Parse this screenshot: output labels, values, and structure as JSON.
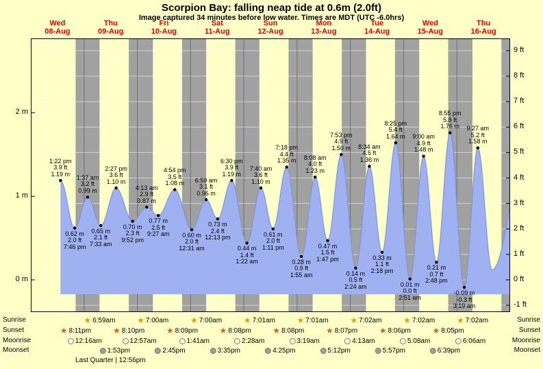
{
  "header": {
    "title": "Scorpion Bay: falling  neap tide at 0.6m (2.0ft)",
    "subtitle": "Image captured 34 minutes before low water. Times are MDT (UTC -6.0hrs)"
  },
  "chart_data": {
    "type": "area",
    "title": "Scorpion Bay: falling neap tide at 0.6m (2.0ft)",
    "x_axis_unit": "days",
    "days": [
      {
        "name": "Wed",
        "date": "08-Aug"
      },
      {
        "name": "Thu",
        "date": "09-Aug"
      },
      {
        "name": "Fri",
        "date": "10-Aug"
      },
      {
        "name": "Sat",
        "date": "11-Aug"
      },
      {
        "name": "Sun",
        "date": "12-Aug"
      },
      {
        "name": "Mon",
        "date": "13-Aug"
      },
      {
        "name": "Tue",
        "date": "14-Aug"
      },
      {
        "name": "Wed",
        "date": "15-Aug"
      },
      {
        "name": "Thu",
        "date": "16-Aug"
      }
    ],
    "y_axis_meters": {
      "labels": [
        "2 m",
        "1 m",
        "0 m"
      ],
      "values": [
        2,
        1,
        0
      ]
    },
    "y_axis_feet": {
      "labels": [
        "9 ft",
        "8 ft",
        "7 ft",
        "6 ft",
        "5 ft",
        "4 ft",
        "3 ft",
        "2 ft",
        "1 ft",
        "0 ft",
        "-1 ft"
      ],
      "values": [
        9,
        8,
        7,
        6,
        5,
        4,
        3,
        2,
        1,
        0,
        -1
      ]
    },
    "tide_events": [
      {
        "day": 0,
        "hour": 13.37,
        "type": "high",
        "time": "1:22 pm",
        "ft": "3.9 ft",
        "m": "1.19 m",
        "height_m": 1.19
      },
      {
        "day": 0,
        "hour": 19.77,
        "type": "low",
        "time": "7:46 pm",
        "ft": "2.0 ft",
        "m": "0.62 m",
        "height_m": 0.62
      },
      {
        "day": 1,
        "hour": 1.62,
        "type": "high",
        "time": "1:37 am",
        "ft": "3.2 ft",
        "m": "0.99 m",
        "height_m": 0.99
      },
      {
        "day": 1,
        "hour": 7.55,
        "type": "low",
        "time": "7:33 am",
        "ft": "2.1 ft",
        "m": "0.65 m",
        "height_m": 0.65
      },
      {
        "day": 1,
        "hour": 14.45,
        "type": "high",
        "time": "2:27 pm",
        "ft": "3.6 ft",
        "m": "1.10 m",
        "height_m": 1.1
      },
      {
        "day": 1,
        "hour": 21.87,
        "type": "low",
        "time": "9:52 pm",
        "ft": "2.3 ft",
        "m": "0.70 m",
        "height_m": 0.7
      },
      {
        "day": 2,
        "hour": 4.22,
        "type": "high",
        "time": "4:13 am",
        "ft": "2.9 ft",
        "m": "0.87 m",
        "height_m": 0.87
      },
      {
        "day": 2,
        "hour": 9.45,
        "type": "low",
        "time": "9:27 am",
        "ft": "2.5 ft",
        "m": "0.77 m",
        "height_m": 0.77
      },
      {
        "day": 2,
        "hour": 16.9,
        "type": "high",
        "time": "4:54 pm",
        "ft": "3.5 ft",
        "m": "1.08 m",
        "height_m": 1.08
      },
      {
        "day": 3,
        "hour": 0.52,
        "type": "low",
        "time": "12:31 am",
        "ft": "2.0 ft",
        "m": "0.60 m",
        "height_m": 0.6
      },
      {
        "day": 3,
        "hour": 6.98,
        "type": "high",
        "time": "6:59 am",
        "ft": "3.1 ft",
        "m": "0.96 m",
        "height_m": 0.96
      },
      {
        "day": 3,
        "hour": 12.22,
        "type": "low",
        "time": "12:13 pm",
        "ft": "2.4 ft",
        "m": "0.73 m",
        "height_m": 0.73
      },
      {
        "day": 3,
        "hour": 18.5,
        "type": "high",
        "time": "6:30 pm",
        "ft": "3.9 ft",
        "m": "1.19 m",
        "height_m": 1.19
      },
      {
        "day": 4,
        "hour": 1.37,
        "type": "low",
        "time": "1:22 am",
        "ft": "1.4 ft",
        "m": "0.44 m",
        "height_m": 0.44
      },
      {
        "day": 4,
        "hour": 7.67,
        "type": "high",
        "time": "7:40 am",
        "ft": "3.6 ft",
        "m": "1.10 m",
        "height_m": 1.1
      },
      {
        "day": 4,
        "hour": 13.18,
        "type": "low",
        "time": "1:11 pm",
        "ft": "2.0 ft",
        "m": "0.61 m",
        "height_m": 0.61
      },
      {
        "day": 4,
        "hour": 19.3,
        "type": "high",
        "time": "7:18 pm",
        "ft": "4.4 ft",
        "m": "1.35 m",
        "height_m": 1.35
      },
      {
        "day": 5,
        "hour": 1.92,
        "type": "low",
        "time": "1:55 am",
        "ft": "0.9 ft",
        "m": "0.28 m",
        "height_m": 0.28
      },
      {
        "day": 5,
        "hour": 8.13,
        "type": "high",
        "time": "8:08 am",
        "ft": "4.0 ft",
        "m": "1.23 m",
        "height_m": 1.23
      },
      {
        "day": 5,
        "hour": 13.78,
        "type": "low",
        "time": "1:47 pm",
        "ft": "1.5 ft",
        "m": "0.47 m",
        "height_m": 0.47
      },
      {
        "day": 5,
        "hour": 19.88,
        "type": "high",
        "time": "7:53 pm",
        "ft": "4.9 ft",
        "m": "1.50 m",
        "height_m": 1.5
      },
      {
        "day": 6,
        "hour": 2.4,
        "type": "low",
        "time": "2:24 am",
        "ft": "0.5 ft",
        "m": "0.14 m",
        "height_m": 0.14
      },
      {
        "day": 6,
        "hour": 8.57,
        "type": "high",
        "time": "8:34 am",
        "ft": "4.5 ft",
        "m": "1.36 m",
        "height_m": 1.36
      },
      {
        "day": 6,
        "hour": 14.3,
        "type": "low",
        "time": "2:18 pm",
        "ft": "1.1 ft",
        "m": "0.33 m",
        "height_m": 0.33
      },
      {
        "day": 6,
        "hour": 20.42,
        "type": "high",
        "time": "8:25 pm",
        "ft": "5.4 ft",
        "m": "1.64 m",
        "height_m": 1.64
      },
      {
        "day": 7,
        "hour": 2.85,
        "type": "low",
        "time": "2:51 am",
        "ft": "0.0 ft",
        "m": "0.01 m",
        "height_m": 0.01
      },
      {
        "day": 7,
        "hour": 9.0,
        "type": "high",
        "time": "9:00 am",
        "ft": "4.9 ft",
        "m": "1.48 m",
        "height_m": 1.48
      },
      {
        "day": 7,
        "hour": 14.8,
        "type": "low",
        "time": "2:48 pm",
        "ft": "0.7 ft",
        "m": "0.21 m",
        "height_m": 0.21
      },
      {
        "day": 7,
        "hour": 20.92,
        "type": "high",
        "time": "8:55 pm",
        "ft": "5.8 ft",
        "m": "1.76 m",
        "height_m": 1.76
      },
      {
        "day": 8,
        "hour": 3.32,
        "type": "low",
        "time": "3:19 am",
        "ft": "-0.3 ft",
        "m": "-0.09 m",
        "height_m": -0.09
      },
      {
        "day": 8,
        "hour": 9.45,
        "type": "high",
        "time": "9:27 am",
        "ft": "5.2 ft",
        "m": "1.58 m",
        "height_m": 1.58
      }
    ],
    "night_bands": [
      [
        0.841,
        1.291
      ],
      [
        1.84,
        2.292
      ],
      [
        2.84,
        3.292
      ],
      [
        3.839,
        4.292
      ],
      [
        4.839,
        5.292
      ],
      [
        5.838,
        6.293
      ],
      [
        6.838,
        7.293
      ],
      [
        7.837,
        8.293
      ],
      [
        8.837,
        9.0
      ]
    ]
  },
  "astro": {
    "row_labels": {
      "sunrise": "Sunrise",
      "sunset": "Sunset",
      "moonrise": "Moonrise",
      "moonset": "Moonset"
    },
    "sunrise": [
      {
        "day": 1,
        "hour": 6.98,
        "time": "6:59am"
      },
      {
        "day": 2,
        "hour": 7.0,
        "time": "7:00am"
      },
      {
        "day": 3,
        "hour": 7.0,
        "time": "7:00am"
      },
      {
        "day": 4,
        "hour": 7.02,
        "time": "7:01am"
      },
      {
        "day": 5,
        "hour": 7.02,
        "time": "7:01am"
      },
      {
        "day": 6,
        "hour": 7.03,
        "time": "7:02am"
      },
      {
        "day": 7,
        "hour": 7.03,
        "time": "7:02am"
      },
      {
        "day": 8,
        "hour": 7.03,
        "time": "7:02am"
      }
    ],
    "sunset": [
      {
        "day": 0,
        "hour": 20.18,
        "time": "8:11pm"
      },
      {
        "day": 1,
        "hour": 20.17,
        "time": "8:10pm"
      },
      {
        "day": 2,
        "hour": 20.15,
        "time": "8:09pm"
      },
      {
        "day": 3,
        "hour": 20.13,
        "time": "8:08pm"
      },
      {
        "day": 4,
        "hour": 20.13,
        "time": "8:08pm"
      },
      {
        "day": 5,
        "hour": 20.12,
        "time": "8:07pm"
      },
      {
        "day": 6,
        "hour": 20.1,
        "time": "8:06pm"
      },
      {
        "day": 7,
        "hour": 20.08,
        "time": "8:05pm"
      }
    ],
    "moonrise": [
      {
        "day": 1,
        "hour": 0.27,
        "time": "12:16am"
      },
      {
        "day": 2,
        "hour": 0.95,
        "time": "12:57am"
      },
      {
        "day": 3,
        "hour": 1.68,
        "time": "1:41am"
      },
      {
        "day": 4,
        "hour": 2.47,
        "time": "2:28am"
      },
      {
        "day": 5,
        "hour": 3.32,
        "time": "3:19am"
      },
      {
        "day": 6,
        "hour": 4.22,
        "time": "4:13am"
      },
      {
        "day": 7,
        "hour": 5.13,
        "time": "5:08am"
      },
      {
        "day": 8,
        "hour": 6.1,
        "time": "6:06am"
      }
    ],
    "moonset": [
      {
        "day": 1,
        "hour": 13.88,
        "time": "1:53pm"
      },
      {
        "day": 2,
        "hour": 14.75,
        "time": "2:45pm"
      },
      {
        "day": 3,
        "hour": 15.58,
        "time": "3:35pm"
      },
      {
        "day": 4,
        "hour": 16.42,
        "time": "4:25pm"
      },
      {
        "day": 5,
        "hour": 17.2,
        "time": "5:12pm"
      },
      {
        "day": 6,
        "hour": 17.95,
        "time": "5:57pm"
      },
      {
        "day": 7,
        "hour": 18.65,
        "time": "6:39pm"
      }
    ],
    "moon_phase": "Last Quarter | 12:56pm"
  },
  "colors": {
    "background": "#ffffc8",
    "night_band": "#a1a1a1",
    "tide_fill": "#9fb1f1",
    "tide_stroke": "#7e94dd",
    "day_label": "#e60000",
    "sunrise_icon": "#d8a01d",
    "sunset_icon": "#e05a1a",
    "moonrise_icon": "#fffde8",
    "moonset_icon": "#9e9e9e"
  }
}
